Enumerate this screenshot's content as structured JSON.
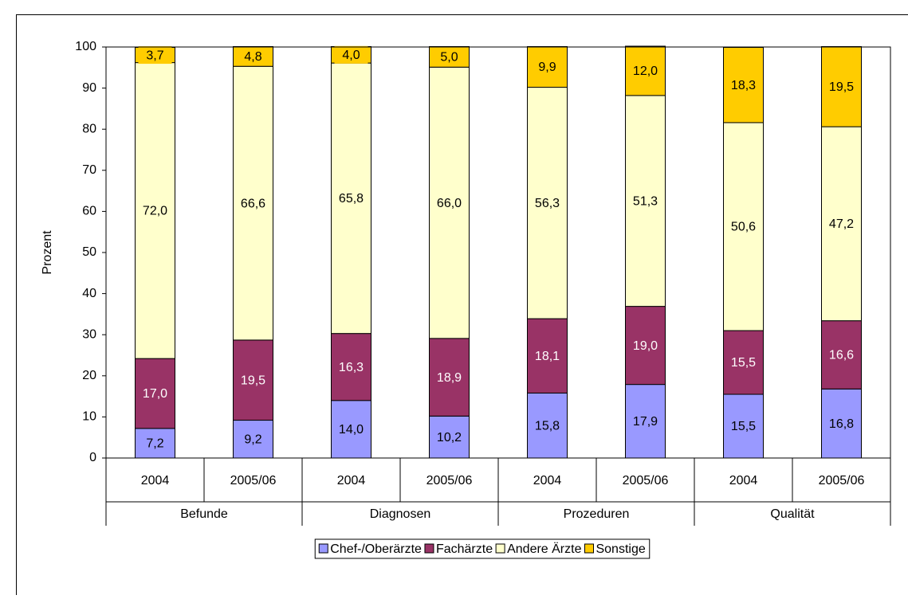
{
  "chart_data": {
    "type": "stacked_bar",
    "y_label": "Prozent",
    "categories": [
      "2004",
      "2005/06",
      "2004",
      "2005/06",
      "2004",
      "2005/06",
      "2004",
      "2005/06"
    ],
    "group_labels": [
      "Befunde",
      "Diagnosen",
      "Prozeduren",
      "Qualität"
    ],
    "series": [
      {
        "name": "Chef-/Oberärzte",
        "color": "#9999ff",
        "values": [
          7.2,
          9.2,
          14.0,
          10.2,
          15.8,
          17.9,
          15.5,
          16.8
        ],
        "value_labels": [
          "7,2",
          "9,2",
          "14,0",
          "10,2",
          "15,8",
          "17,9",
          "15,5",
          "16,8"
        ]
      },
      {
        "name": "Fachärzte",
        "color": "#993366",
        "values": [
          17.0,
          19.5,
          16.3,
          18.9,
          18.1,
          19.0,
          15.5,
          16.6
        ],
        "value_labels": [
          "17,0",
          "19,5",
          "16,3",
          "18,9",
          "18,1",
          "19,0",
          "15,5",
          "16,6"
        ]
      },
      {
        "name": "Andere Ärzte",
        "color": "#ffffcc",
        "values": [
          72.0,
          66.6,
          65.8,
          66.0,
          56.3,
          51.3,
          50.6,
          47.2
        ],
        "value_labels": [
          "72,0",
          "66,6",
          "65,8",
          "66,0",
          "56,3",
          "51,3",
          "50,6",
          "47,2"
        ]
      },
      {
        "name": "Sonstige",
        "color": "#ffcc00",
        "values": [
          3.7,
          4.8,
          4.0,
          5.0,
          9.9,
          12.0,
          18.3,
          19.5
        ],
        "value_labels": [
          "3,7",
          "4,8",
          "4,0",
          "5,0",
          "9,9",
          "12,0",
          "18,3",
          "19,5"
        ]
      }
    ],
    "ylim": [
      0,
      100
    ],
    "yticks": [
      0,
      10,
      20,
      30,
      40,
      50,
      60,
      70,
      80,
      90,
      100
    ],
    "legend": "bottom"
  }
}
